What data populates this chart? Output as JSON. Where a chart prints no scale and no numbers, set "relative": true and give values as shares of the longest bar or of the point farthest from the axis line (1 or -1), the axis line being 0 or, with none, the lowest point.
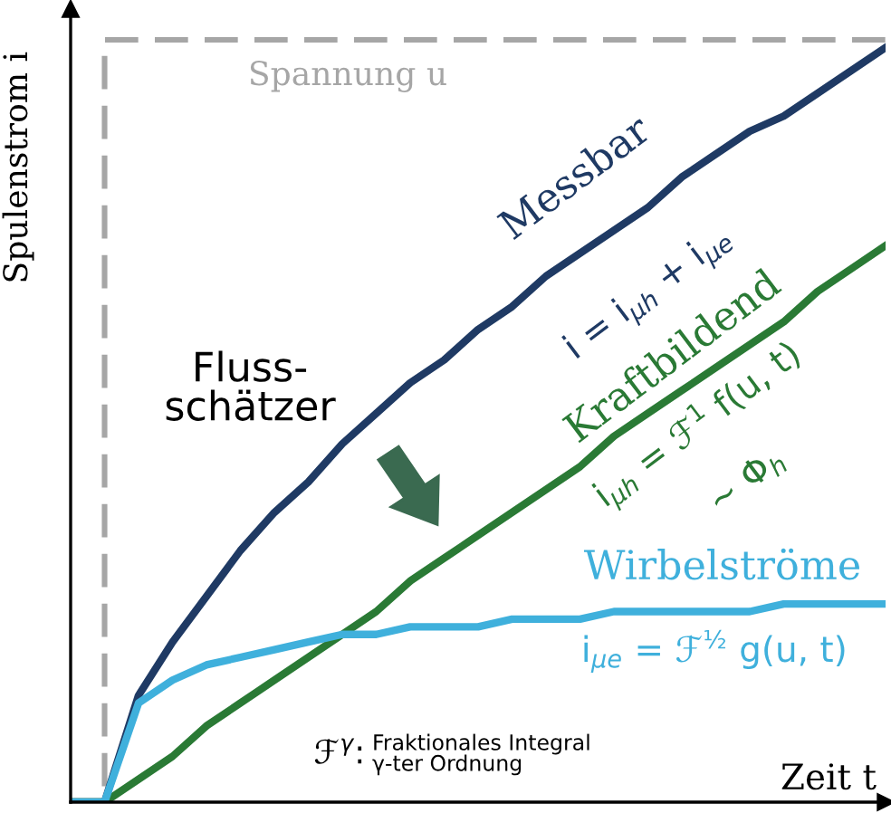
{
  "chart_data": {
    "type": "line",
    "relative": true,
    "xlabel": "Zeit t",
    "ylabel": "Spulenstrom i",
    "categories": [
      null,
      null,
      null,
      null,
      null,
      null,
      null,
      null,
      null,
      null,
      null,
      null,
      null,
      null,
      null,
      null,
      null,
      null,
      null,
      null,
      null,
      null,
      null,
      null,
      null
    ],
    "series": [
      {
        "name": "Spannung u",
        "type": "step",
        "color": "#a6a6a6",
        "line_style": "dashed",
        "values": [
          0,
          1,
          1,
          1,
          1,
          1,
          1,
          1,
          1,
          1,
          1,
          1,
          1,
          1,
          1,
          1,
          1,
          1,
          1,
          1,
          1,
          1,
          1,
          1,
          1
        ]
      },
      {
        "name": "Messbar",
        "color": "#1f3a64",
        "values": [
          0,
          0,
          0.14,
          0.21,
          0.27,
          0.33,
          0.38,
          0.42,
          0.47,
          0.51,
          0.55,
          0.58,
          0.62,
          0.65,
          0.69,
          0.72,
          0.75,
          0.78,
          0.82,
          0.85,
          0.88,
          0.9,
          0.93,
          0.96,
          0.99
        ]
      },
      {
        "name": "Kraftbildend",
        "color": "#2a7a35",
        "values": [
          0,
          0,
          0.03,
          0.06,
          0.1,
          0.13,
          0.16,
          0.19,
          0.22,
          0.25,
          0.29,
          0.32,
          0.35,
          0.38,
          0.41,
          0.44,
          0.48,
          0.51,
          0.54,
          0.57,
          0.6,
          0.63,
          0.67,
          0.7,
          0.73
        ]
      },
      {
        "name": "Wirbelströme",
        "color": "#3fb0dc",
        "values": [
          0,
          0,
          0.13,
          0.16,
          0.18,
          0.19,
          0.2,
          0.21,
          0.22,
          0.22,
          0.23,
          0.23,
          0.23,
          0.24,
          0.24,
          0.24,
          0.25,
          0.25,
          0.25,
          0.25,
          0.25,
          0.26,
          0.26,
          0.26,
          0.26
        ]
      }
    ],
    "annotations": [
      "i = i$_{μh}$ + i$_{μe}$",
      "i$_{μh}$ = ℱ$^{1}$ f(u, t)",
      "~ Φ$_{h}$",
      "Fluss-\nschätzer",
      "i$_{μe}$ = ℱ$^{½}$ g(u, t)",
      "ℱ$^{γ}$:",
      "Fraktionales Integral\nγ-ter Ordnung"
    ],
    "legend": false,
    "marker": "none",
    "line_style": "solid"
  }
}
